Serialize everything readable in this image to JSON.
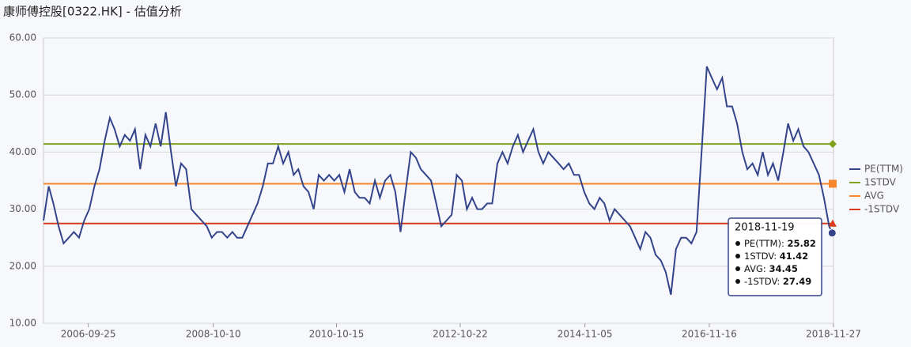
{
  "chart_data": {
    "type": "line",
    "title": "康师傅控股[0322.HK] - 估值分析",
    "x": [
      "2006-01-01",
      "2006-02-01",
      "2006-03-01",
      "2006-04-01",
      "2006-05-01",
      "2006-06-01",
      "2006-07-01",
      "2006-08-01",
      "2006-09-01",
      "2006-10-01",
      "2006-11-01",
      "2006-12-01",
      "2007-01-01",
      "2007-02-01",
      "2007-03-01",
      "2007-04-01",
      "2007-05-01",
      "2007-06-01",
      "2007-07-01",
      "2007-08-01",
      "2007-09-01",
      "2007-10-01",
      "2007-11-01",
      "2007-12-01",
      "2008-01-01",
      "2008-02-01",
      "2008-03-01",
      "2008-04-01",
      "2008-05-01",
      "2008-06-01",
      "2008-07-01",
      "2008-08-01",
      "2008-09-01",
      "2008-10-01",
      "2008-11-01",
      "2008-12-01",
      "2009-01-01",
      "2009-02-01",
      "2009-03-01",
      "2009-04-01",
      "2009-05-01",
      "2009-06-01",
      "2009-07-01",
      "2009-08-01",
      "2009-09-01",
      "2009-10-01",
      "2009-11-01",
      "2009-12-01",
      "2010-01-01",
      "2010-02-01",
      "2010-03-01",
      "2010-04-01",
      "2010-05-01",
      "2010-06-01",
      "2010-07-01",
      "2010-08-01",
      "2010-09-01",
      "2010-10-01",
      "2010-11-01",
      "2010-12-01",
      "2011-01-01",
      "2011-02-01",
      "2011-03-01",
      "2011-04-01",
      "2011-05-01",
      "2011-06-01",
      "2011-07-01",
      "2011-08-01",
      "2011-09-01",
      "2011-10-01",
      "2011-11-01",
      "2011-12-01",
      "2012-01-01",
      "2012-02-01",
      "2012-03-01",
      "2012-04-01",
      "2012-05-01",
      "2012-06-01",
      "2012-07-01",
      "2012-08-01",
      "2012-09-01",
      "2012-10-01",
      "2012-11-01",
      "2012-12-01",
      "2013-01-01",
      "2013-02-01",
      "2013-03-01",
      "2013-04-01",
      "2013-05-01",
      "2013-06-01",
      "2013-07-01",
      "2013-08-01",
      "2013-09-01",
      "2013-10-01",
      "2013-11-01",
      "2013-12-01",
      "2014-01-01",
      "2014-02-01",
      "2014-03-01",
      "2014-04-01",
      "2014-05-01",
      "2014-06-01",
      "2014-07-01",
      "2014-08-01",
      "2014-09-01",
      "2014-10-01",
      "2014-11-01",
      "2014-12-01",
      "2015-01-01",
      "2015-02-01",
      "2015-03-01",
      "2015-04-01",
      "2015-05-01",
      "2015-06-01",
      "2015-07-01",
      "2015-08-01",
      "2015-09-01",
      "2015-10-01",
      "2015-11-01",
      "2015-12-01",
      "2016-01-01",
      "2016-02-01",
      "2016-03-01",
      "2016-04-01",
      "2016-05-01",
      "2016-06-01",
      "2016-07-01",
      "2016-08-01",
      "2016-09-01",
      "2016-10-01",
      "2016-11-01",
      "2016-12-01",
      "2017-01-01",
      "2017-02-01",
      "2017-03-01",
      "2017-04-01",
      "2017-05-01",
      "2017-06-01",
      "2017-07-01",
      "2017-08-01",
      "2017-09-01",
      "2017-10-01",
      "2017-11-01",
      "2017-12-01",
      "2018-01-01",
      "2018-02-01",
      "2018-03-01",
      "2018-04-01",
      "2018-05-01",
      "2018-06-01",
      "2018-07-01",
      "2018-08-01",
      "2018-09-01",
      "2018-10-01",
      "2018-11-01",
      "2018-11-19"
    ],
    "series": [
      {
        "name": "PE(TTM)",
        "color": "#33448a",
        "marker": "circle",
        "values": [
          28,
          34,
          31,
          27,
          24,
          25,
          26,
          25,
          28,
          30,
          34,
          37,
          42,
          46,
          44,
          41,
          43,
          42,
          44,
          37,
          43,
          41,
          45,
          41,
          47,
          40,
          34,
          38,
          37,
          30,
          29,
          28,
          27,
          25,
          26,
          26,
          25,
          26,
          25,
          25,
          27,
          29,
          31,
          34,
          38,
          38,
          41,
          38,
          40,
          36,
          37,
          34,
          33,
          30,
          36,
          35,
          36,
          35,
          36,
          33,
          37,
          33,
          32,
          32,
          31,
          35,
          32,
          35,
          36,
          33,
          26,
          33,
          40,
          39,
          37,
          36,
          35,
          31,
          27,
          28,
          29,
          36,
          35,
          30,
          32,
          30,
          30,
          31,
          31,
          38,
          40,
          38,
          41,
          43,
          40,
          42,
          44,
          40,
          38,
          40,
          39,
          38,
          37,
          38,
          36,
          36,
          33,
          31,
          30,
          32,
          31,
          28,
          30,
          29,
          28,
          27,
          25,
          23,
          26,
          25,
          22,
          21,
          19,
          15,
          23,
          25,
          25,
          24,
          26,
          40,
          55,
          53,
          51,
          53,
          48,
          48,
          45,
          40,
          37,
          38,
          36,
          40,
          36,
          38,
          35,
          40,
          45,
          42,
          44,
          41,
          40,
          38,
          36,
          32,
          27,
          25.82
        ]
      }
    ],
    "reference_lines": [
      {
        "name": "1STDV",
        "color": "#7fa11c",
        "marker": "diamond",
        "value": 41.42
      },
      {
        "name": "AVG",
        "color": "#f5862a",
        "marker": "square",
        "value": 34.45
      },
      {
        "name": "-1STDV",
        "color": "#d93a1e",
        "marker": "triangle",
        "value": 27.49
      }
    ],
    "xlim": [
      "2006-01-01",
      "2018-11-27"
    ],
    "xticks": [
      "2006-09-25",
      "2008-10-10",
      "2010-10-15",
      "2012-10-22",
      "2014-11-05",
      "2016-11-16",
      "2018-11-27"
    ],
    "ylim": [
      10,
      60
    ],
    "yticks": [
      {
        "value": 10,
        "label": "10.00"
      },
      {
        "value": 20,
        "label": "20.00"
      },
      {
        "value": 30,
        "label": "30.00"
      },
      {
        "value": 40,
        "label": "40.00"
      },
      {
        "value": 50,
        "label": "50.00"
      },
      {
        "value": 60,
        "label": "60.00"
      }
    ],
    "grid": true,
    "legend": "right",
    "tooltip": {
      "title": "2018-11-19",
      "items": [
        {
          "label": "PE(TTM):",
          "value": 25.82
        },
        {
          "label": "1STDV:",
          "value": 41.42
        },
        {
          "label": "AVG:",
          "value": 34.45
        },
        {
          "label": "-1STDV:",
          "value": 27.49
        }
      ]
    }
  }
}
